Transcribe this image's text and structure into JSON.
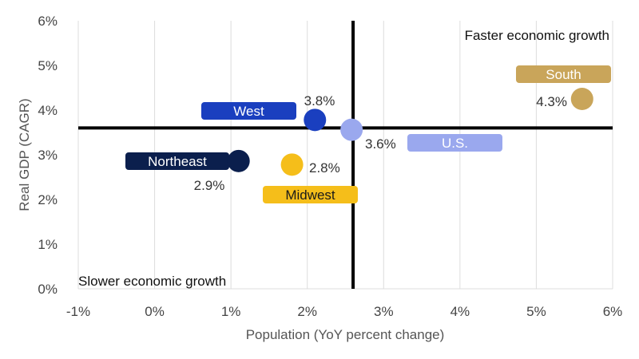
{
  "chart_data": {
    "type": "scatter",
    "xlabel": "Population (YoY percent change)",
    "ylabel": "Real GDP (CAGR)",
    "xlim": [
      -1,
      6
    ],
    "ylim": [
      0,
      6
    ],
    "x_ticks": [
      -1,
      0,
      1,
      2,
      3,
      4,
      5,
      6
    ],
    "y_ticks": [
      0,
      1,
      2,
      3,
      4,
      5,
      6
    ],
    "x_tick_labels": [
      "-1%",
      "0%",
      "1%",
      "2%",
      "3%",
      "4%",
      "5%",
      "6%"
    ],
    "y_tick_labels": [
      "0%",
      "1%",
      "2%",
      "3%",
      "4%",
      "5%",
      "6%"
    ],
    "grid": "vertical",
    "reference_lines": {
      "x": 2.6,
      "y": 3.6
    },
    "quadrant_labels": {
      "top_right": "Faster economic growth",
      "bottom_left": "Slower economic growth"
    },
    "points": [
      {
        "name": "South",
        "x": 5.6,
        "y": 4.25,
        "value_label": "4.3%",
        "color": "#c9a55a",
        "text_color": "#ffffff"
      },
      {
        "name": "West",
        "x": 2.1,
        "y": 3.78,
        "value_label": "3.8%",
        "color": "#1a3fbf",
        "text_color": "#ffffff"
      },
      {
        "name": "U.S.",
        "x": 2.58,
        "y": 3.56,
        "value_label": "3.6%",
        "color": "#9aa8ee",
        "text_color": "#ffffff"
      },
      {
        "name": "Northeast",
        "x": 1.1,
        "y": 2.86,
        "value_label": "2.9%",
        "color": "#0b1f4d",
        "text_color": "#ffffff"
      },
      {
        "name": "Midwest",
        "x": 1.8,
        "y": 2.78,
        "value_label": "2.8%",
        "color": "#f5be1a",
        "text_color": "#1a1a1a"
      }
    ]
  }
}
